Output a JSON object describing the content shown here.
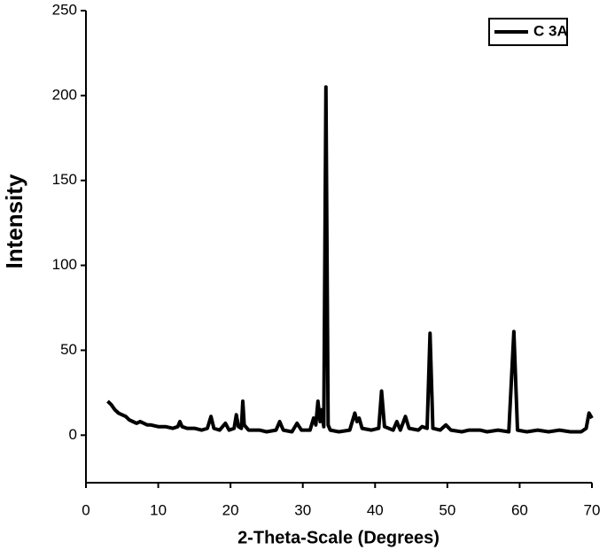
{
  "chart_data": {
    "type": "line",
    "xlabel": "2-Theta-Scale (Degrees)",
    "ylabel": "Intensity",
    "x": [
      3,
      3.5,
      4,
      4.5,
      5,
      5.5,
      6,
      6.5,
      7,
      7.5,
      8,
      8.5,
      9,
      10,
      11,
      12,
      12.7,
      13,
      13.3,
      14,
      15,
      16,
      16.8,
      17.3,
      17.7,
      18.5,
      19.3,
      19.8,
      20.5,
      20.8,
      21.1,
      21.5,
      21.7,
      21.9,
      22.5,
      24,
      25,
      26.3,
      26.8,
      27.3,
      28.5,
      29.2,
      29.8,
      31,
      31.5,
      31.8,
      32.1,
      32.4,
      32.6,
      32.9,
      33.2,
      33.5,
      33.8,
      35,
      36.5,
      37.2,
      37.5,
      37.8,
      38.2,
      39.5,
      40.5,
      40.9,
      41.3,
      42.5,
      43.0,
      43.5,
      44.2,
      44.7,
      46,
      46.5,
      47.2,
      47.6,
      48.0,
      49,
      49.8,
      50.5,
      52,
      53,
      54.5,
      55.5,
      57,
      58.5,
      59.2,
      59.7,
      61,
      62.5,
      64,
      65.5,
      67,
      68.5,
      69.2,
      69.6,
      70
    ],
    "series": [
      {
        "name": "C 3A",
        "color": "#000000",
        "values": [
          20,
          18,
          15,
          13,
          12,
          11,
          9,
          8,
          7,
          8,
          7,
          6,
          6,
          5,
          5,
          4,
          5,
          8,
          5,
          4,
          4,
          3,
          4,
          11,
          4,
          3,
          7,
          3,
          4,
          12,
          5,
          4,
          20,
          6,
          3,
          3,
          2,
          3,
          8,
          3,
          2,
          7,
          3,
          3,
          10,
          6,
          20,
          8,
          15,
          5,
          205,
          6,
          3,
          2,
          3,
          13,
          8,
          10,
          4,
          3,
          4,
          26,
          5,
          3,
          8,
          3,
          11,
          4,
          3,
          5,
          4,
          60,
          4,
          3,
          6,
          3,
          2,
          3,
          3,
          2,
          3,
          2,
          61,
          3,
          2,
          3,
          2,
          3,
          2,
          2,
          4,
          13,
          10
        ]
      }
    ],
    "xlim": [
      0,
      70
    ],
    "ylim": [
      -28,
      250
    ],
    "xticks": [
      0,
      10,
      20,
      30,
      40,
      50,
      60,
      70
    ],
    "yticks": [
      0,
      50,
      100,
      150,
      200,
      250
    ],
    "legend": "upper right"
  }
}
